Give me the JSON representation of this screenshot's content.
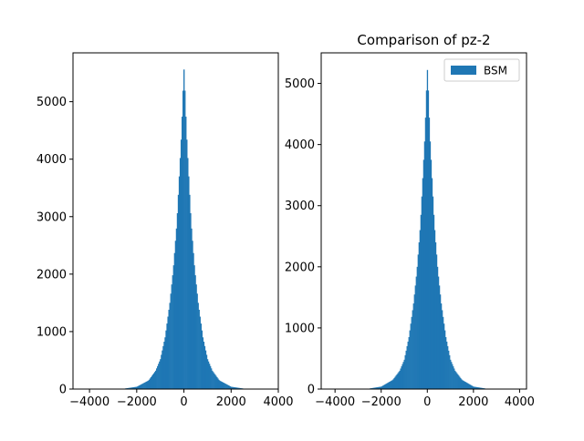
{
  "chart_data": [
    {
      "type": "bar",
      "subtype": "histogram",
      "title": "",
      "xlabel": "",
      "ylabel": "",
      "xlim": [
        -4700,
        4000
      ],
      "ylim": [
        0,
        5850
      ],
      "xticks": [
        -4000,
        -2000,
        0,
        2000,
        4000
      ],
      "xtick_labels": [
        "−4000",
        "−2000",
        "0",
        "2000",
        "4000"
      ],
      "yticks": [
        0,
        1000,
        2000,
        3000,
        4000,
        5000
      ],
      "ytick_labels": [
        "0",
        "1000",
        "2000",
        "3000",
        "4000",
        "5000"
      ],
      "grid": false,
      "legend": null,
      "series": [
        {
          "color": "#1f77b4",
          "bin_centers": [
            -2500,
            -2000,
            -1500,
            -1200,
            -1000,
            -800,
            -600,
            -450,
            -300,
            -200,
            -100,
            -50,
            0,
            50,
            100,
            200,
            300,
            450,
            600,
            800,
            1000,
            1200,
            1500,
            2000,
            2500
          ],
          "counts": [
            10,
            40,
            150,
            320,
            520,
            900,
            1500,
            2100,
            2900,
            3700,
            4500,
            5100,
            5560,
            5100,
            4500,
            3700,
            2900,
            2100,
            1500,
            900,
            520,
            320,
            150,
            40,
            10
          ]
        }
      ]
    },
    {
      "type": "bar",
      "subtype": "histogram",
      "title": "Comparison of pz-2",
      "xlabel": "",
      "ylabel": "",
      "xlim": [
        -4600,
        4300
      ],
      "ylim": [
        0,
        5500
      ],
      "xticks": [
        -4000,
        -2000,
        0,
        2000,
        4000
      ],
      "xtick_labels": [
        "−4000",
        "−2000",
        "0",
        "2000",
        "4000"
      ],
      "yticks": [
        0,
        1000,
        2000,
        3000,
        4000,
        5000
      ],
      "ytick_labels": [
        "0",
        "1000",
        "2000",
        "3000",
        "4000",
        "5000"
      ],
      "grid": false,
      "legend": "top-right",
      "series": [
        {
          "name": "BSM",
          "color": "#1f77b4",
          "bin_centers": [
            -2500,
            -2000,
            -1500,
            -1200,
            -1000,
            -800,
            -600,
            -450,
            -300,
            -200,
            -100,
            -50,
            0,
            50,
            100,
            200,
            300,
            450,
            600,
            800,
            1000,
            1200,
            1500,
            2000,
            2500
          ],
          "counts": [
            10,
            40,
            150,
            300,
            480,
            850,
            1400,
            1950,
            2700,
            3450,
            4200,
            4800,
            5220,
            4800,
            4200,
            3450,
            2700,
            1950,
            1400,
            850,
            480,
            300,
            150,
            40,
            10
          ]
        }
      ]
    }
  ]
}
